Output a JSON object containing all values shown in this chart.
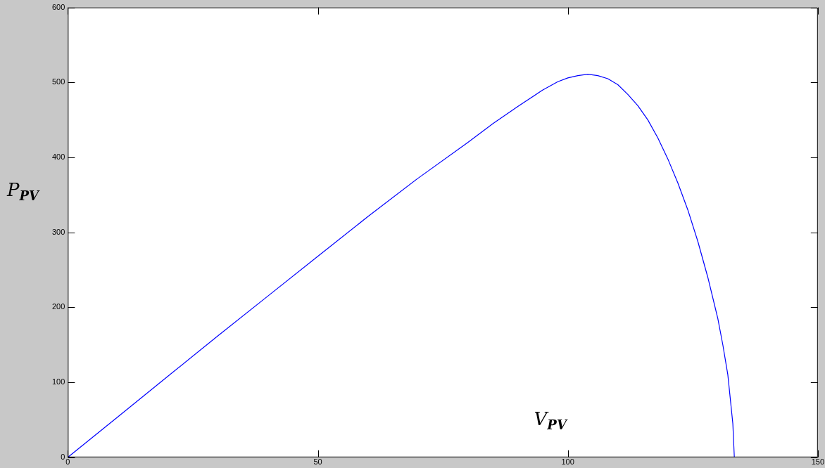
{
  "chart_data": {
    "type": "line",
    "xlabel": "V$_{PV}$",
    "ylabel": "P$_{PV}$",
    "series": [
      {
        "color": "#0000ff",
        "x": [
          0,
          10,
          20,
          30,
          40,
          50,
          60,
          70,
          80,
          85,
          90,
          95,
          98,
          100,
          102,
          104,
          106,
          108,
          110,
          112,
          114,
          116,
          118,
          120,
          122,
          124,
          126,
          128,
          130,
          131,
          132,
          133,
          133.3
        ],
        "values": [
          0,
          54,
          108,
          162,
          215,
          268,
          321,
          372,
          420,
          445,
          468,
          490,
          501,
          506,
          509,
          511,
          509,
          505,
          497,
          484,
          469,
          450,
          426,
          398,
          366,
          330,
          288,
          240,
          185,
          150,
          110,
          45,
          0
        ]
      }
    ],
    "xlim": [
      0,
      150
    ],
    "xticks": [
      0,
      50,
      100,
      150
    ],
    "ylim": [
      0,
      600
    ],
    "yticks": [
      0,
      100,
      200,
      300,
      400,
      500,
      600
    ],
    "grid": false,
    "legend": false,
    "marker": "none",
    "line_style": "solid"
  }
}
